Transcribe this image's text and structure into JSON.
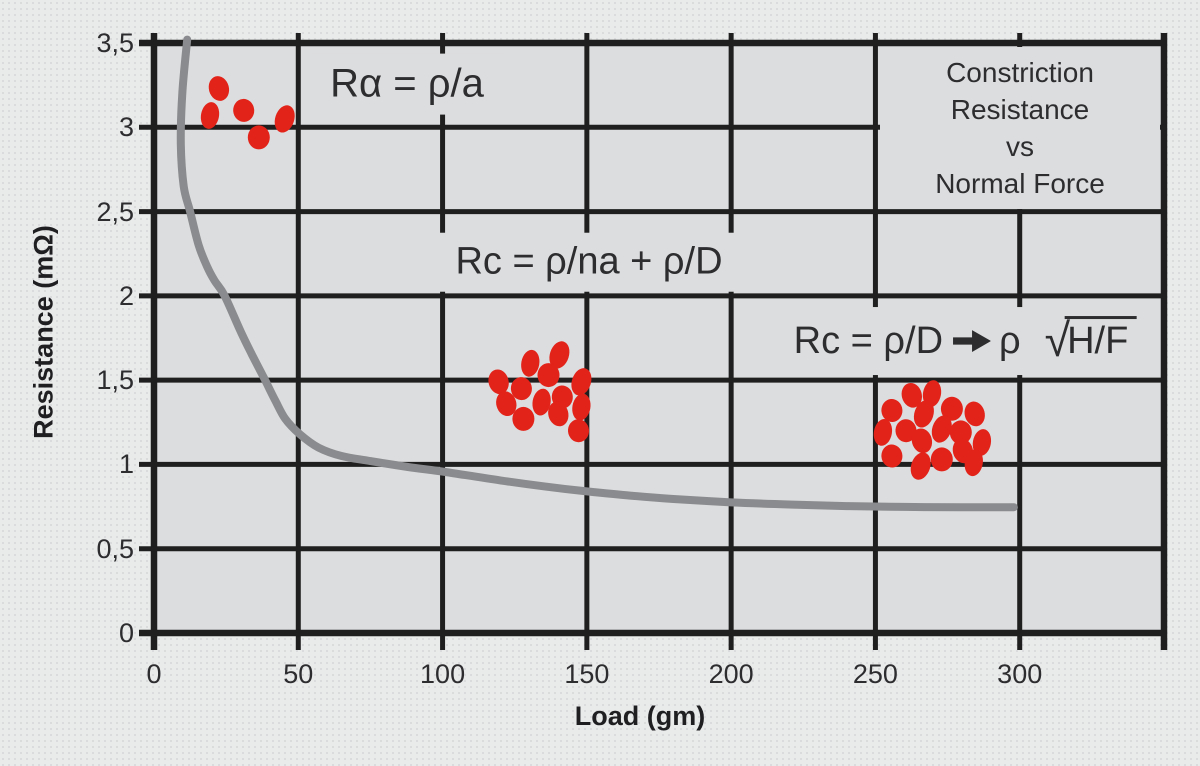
{
  "title_box": {
    "lines": [
      "Constriction",
      "Resistance",
      "vs",
      "Normal Force"
    ]
  },
  "axes": {
    "x": {
      "label": "Load (gm)",
      "tick_labels": [
        "0",
        "50",
        "100",
        "150",
        "200",
        "250",
        "300"
      ],
      "tick_values": [
        0,
        50,
        100,
        150,
        200,
        250,
        300
      ],
      "range": [
        0,
        350
      ]
    },
    "y": {
      "label": "Resistance (mΩ)",
      "tick_labels": [
        "3,5",
        "3",
        "2,5",
        "2",
        "1,5",
        "1",
        "0,5",
        "0"
      ],
      "tick_values": [
        3.5,
        3.0,
        2.5,
        2.0,
        1.5,
        1.0,
        0.5,
        0
      ],
      "range": [
        0,
        3.5
      ]
    }
  },
  "annotations": [
    {
      "id": "single-asperity-formula",
      "text": "Rα = ρ/a"
    },
    {
      "id": "multi-asperity-formula",
      "text": "Rc = ρ/na + ρ/D"
    },
    {
      "id": "high-load-formula",
      "full_text": "Rc = ρ/D ➔ ρ √H/F",
      "parts": {
        "pre": "Rc = ρ/D",
        "post_arrow": "ρ",
        "radicand": "H/F"
      }
    }
  ],
  "colors": {
    "outer_background": "#e9eaea",
    "plot_background": "#dcddde",
    "grid": "#1f1f1f",
    "curve": "#8a8b8e",
    "dots": "#e2231a",
    "text": "#2d2d30"
  },
  "chart_data": {
    "type": "scatter",
    "title": "Constriction Resistance vs Normal Force",
    "xlabel": "Load (gm)",
    "ylabel": "Resistance (mΩ)",
    "xlim": [
      0,
      350
    ],
    "ylim": [
      0,
      3.5
    ],
    "grid": "on",
    "curve": {
      "name": "constriction-resistance-vs-load-curve",
      "points": [
        [
          11.5,
          3.52
        ],
        [
          9.8,
          3.2
        ],
        [
          9.3,
          2.9
        ],
        [
          10.3,
          2.65
        ],
        [
          12.5,
          2.5
        ],
        [
          15.5,
          2.3
        ],
        [
          18.5,
          2.17
        ],
        [
          21,
          2.09
        ],
        [
          24.5,
          2.0
        ],
        [
          30,
          1.79
        ],
        [
          34,
          1.65
        ],
        [
          38.5,
          1.5
        ],
        [
          42,
          1.38
        ],
        [
          45.5,
          1.27
        ],
        [
          50.5,
          1.18
        ],
        [
          57,
          1.1
        ],
        [
          65,
          1.05
        ],
        [
          75,
          1.02
        ],
        [
          88,
          0.985
        ],
        [
          101,
          0.955
        ],
        [
          120,
          0.905
        ],
        [
          135,
          0.87
        ],
        [
          150,
          0.84
        ],
        [
          165,
          0.815
        ],
        [
          180,
          0.795
        ],
        [
          200,
          0.775
        ],
        [
          220,
          0.762
        ],
        [
          240,
          0.753
        ],
        [
          260,
          0.748
        ],
        [
          280,
          0.746
        ],
        [
          298,
          0.746
        ]
      ]
    },
    "clusters": [
      {
        "label_ref": "Rα = ρ/a",
        "points": [
          [
            22.5,
            3.23
          ],
          [
            19.4,
            3.07
          ],
          [
            31.1,
            3.1
          ],
          [
            45.3,
            3.05
          ],
          [
            36.3,
            2.94
          ]
        ]
      },
      {
        "label_ref": "Rc = ρ/na + ρ/D",
        "points": [
          [
            119.4,
            1.49
          ],
          [
            130.4,
            1.6
          ],
          [
            127.3,
            1.45
          ],
          [
            140.5,
            1.65
          ],
          [
            136.7,
            1.53
          ],
          [
            122.1,
            1.36
          ],
          [
            134.3,
            1.37
          ],
          [
            141.5,
            1.4
          ],
          [
            148.1,
            1.49
          ],
          [
            128.0,
            1.27
          ],
          [
            140.1,
            1.3
          ],
          [
            148.1,
            1.34
          ],
          [
            147.1,
            1.2
          ]
        ]
      },
      {
        "label_ref": "Rc = ρ/D ➔ ρ √H/F",
        "points": [
          [
            262.6,
            1.41
          ],
          [
            269.6,
            1.42
          ],
          [
            255.7,
            1.32
          ],
          [
            266.8,
            1.3
          ],
          [
            276.5,
            1.33
          ],
          [
            284.4,
            1.3
          ],
          [
            252.6,
            1.19
          ],
          [
            260.6,
            1.2
          ],
          [
            273.0,
            1.21
          ],
          [
            279.6,
            1.19
          ],
          [
            266.1,
            1.14
          ],
          [
            286.9,
            1.13
          ],
          [
            255.7,
            1.05
          ],
          [
            265.7,
            0.99
          ],
          [
            273.0,
            1.03
          ],
          [
            280.3,
            1.08
          ],
          [
            284.1,
            1.01
          ]
        ]
      }
    ]
  }
}
